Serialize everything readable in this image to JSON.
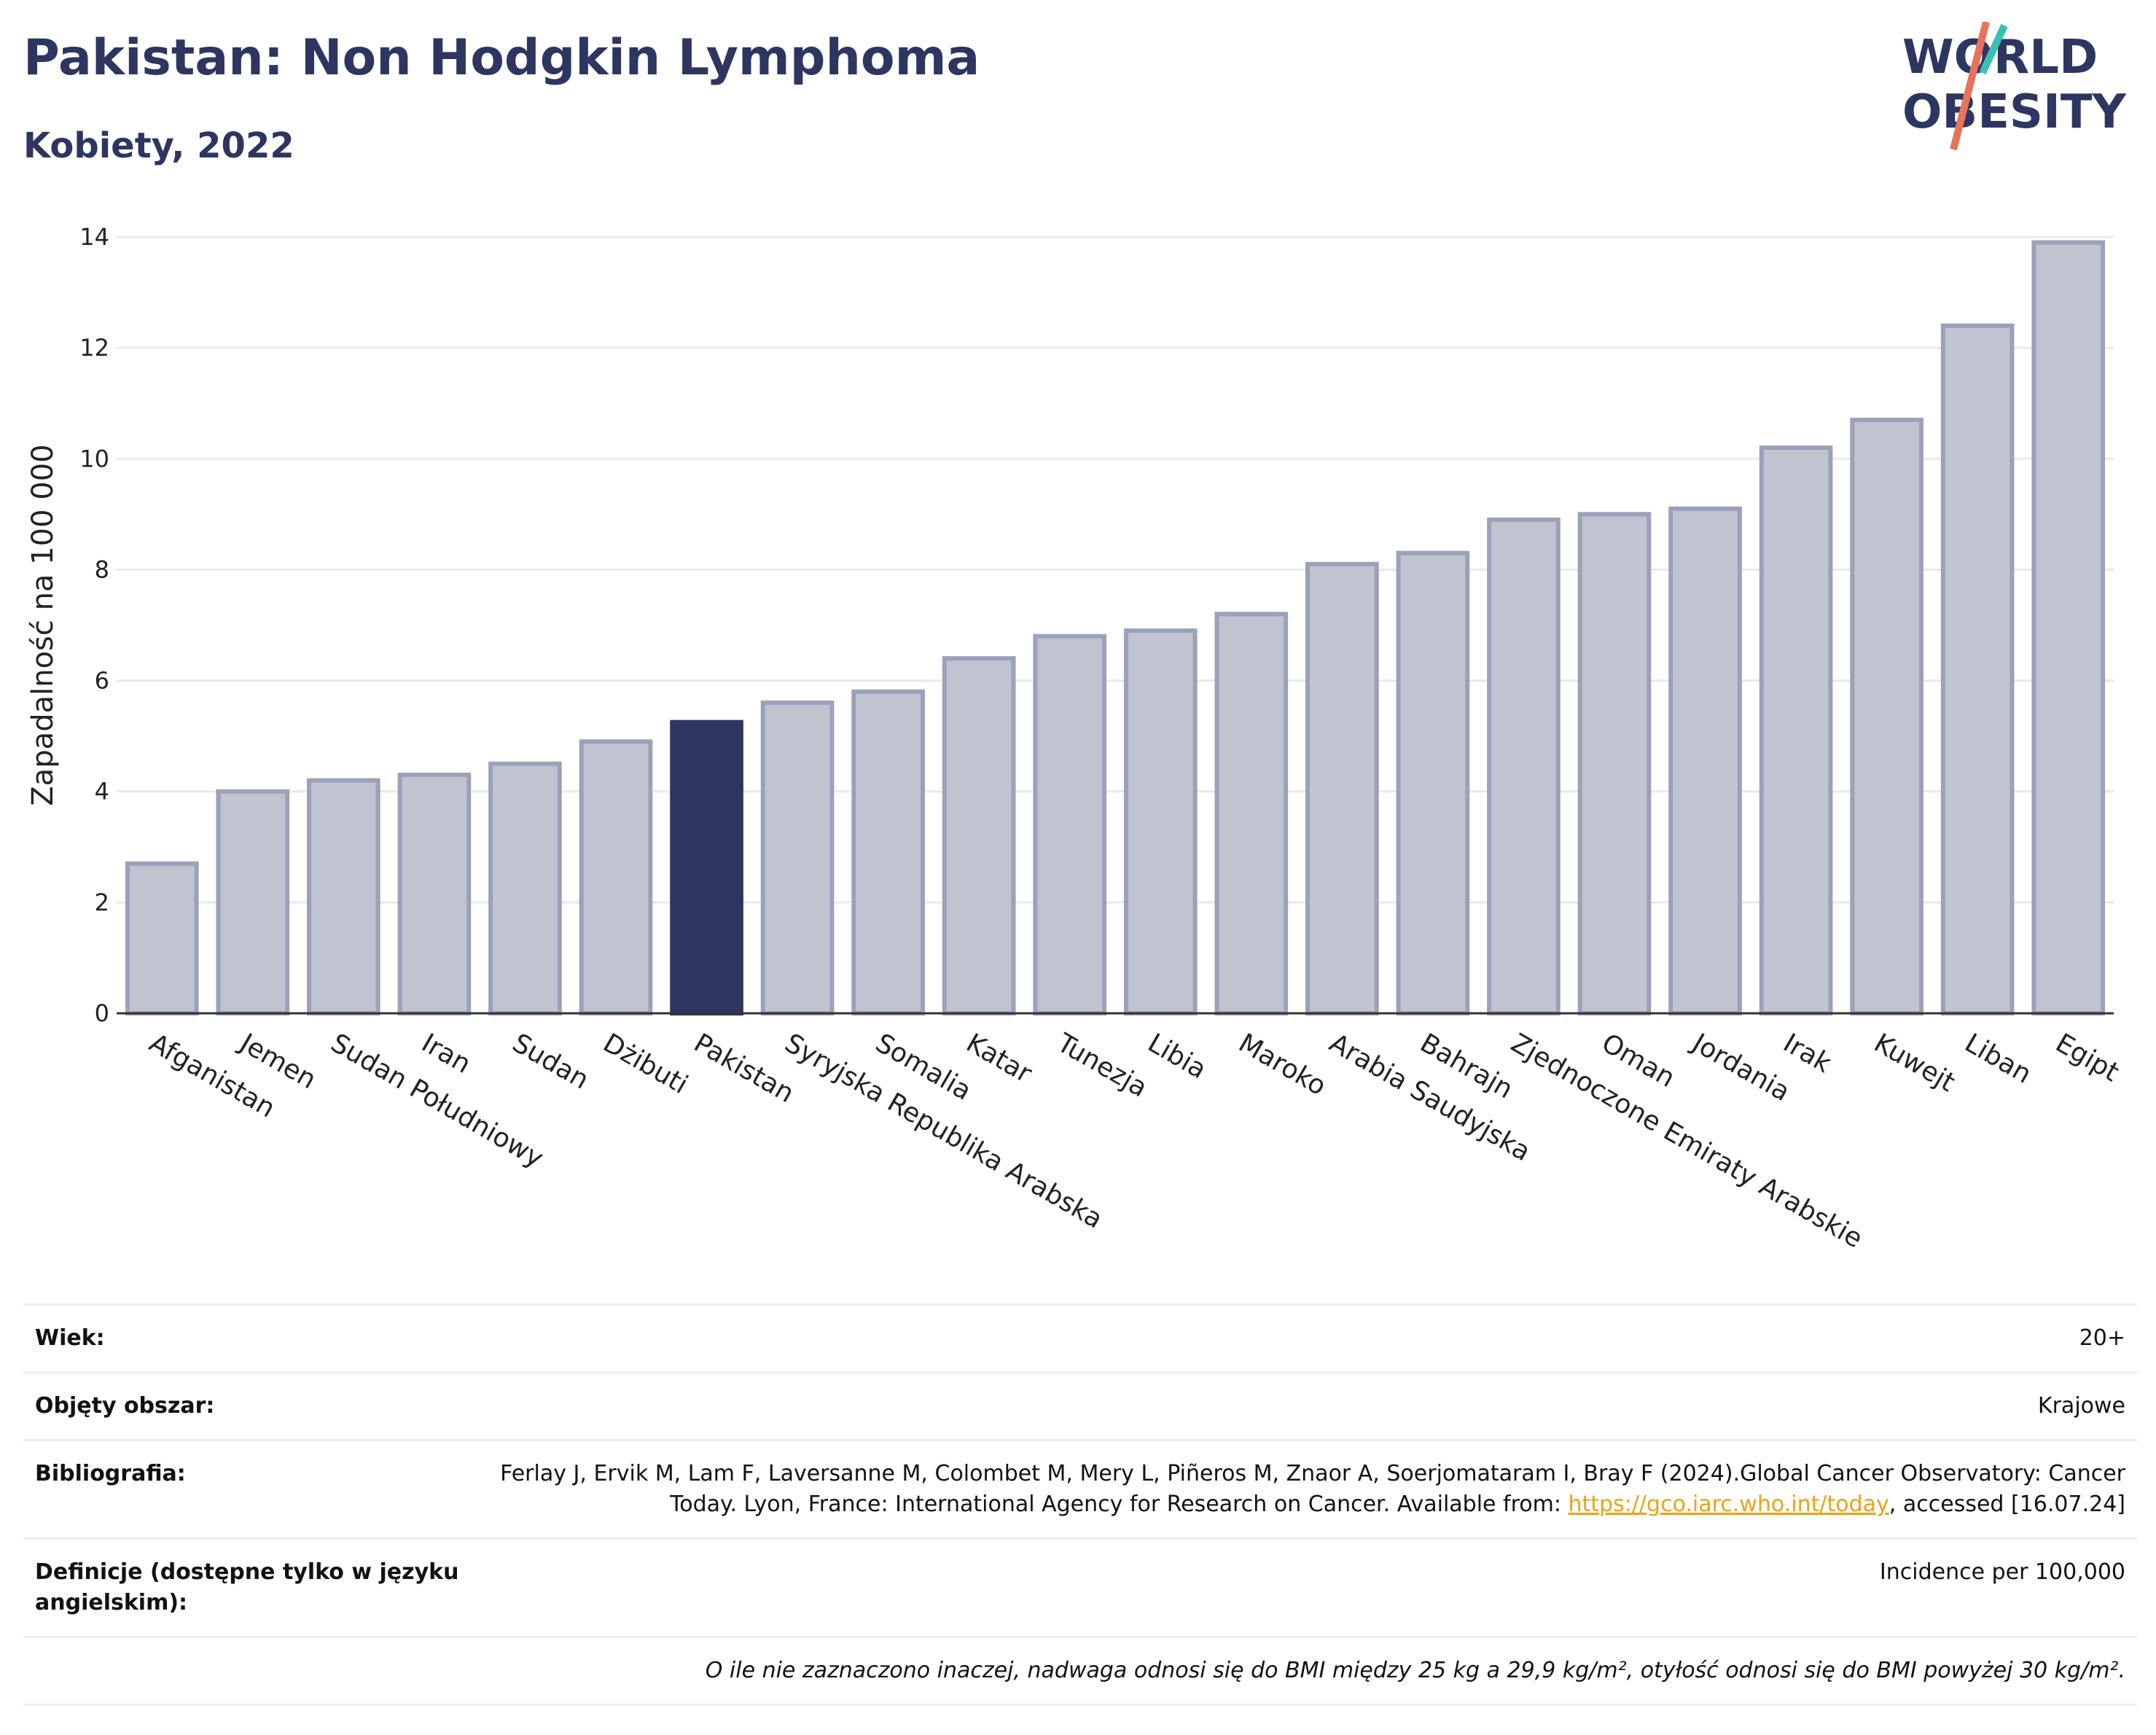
{
  "header": {
    "title": "Pakistan: Non Hodgkin Lymphoma",
    "subtitle": "Kobiety, 2022"
  },
  "logo": {
    "line1": "WORLD",
    "line2": "OBESITY"
  },
  "colors": {
    "highlight": "#2d3561",
    "bar": "#c0c3d0",
    "bar_border": "#9ba1b8",
    "grid": "#e7e9ee"
  },
  "chart_data": {
    "type": "bar",
    "title": "Pakistan: Non Hodgkin Lymphoma",
    "subtitle": "Kobiety, 2022",
    "ylabel": "Zapadalność na 100 000",
    "xlabel": "",
    "ylim": [
      0,
      14
    ],
    "yticks": [
      0,
      2,
      4,
      6,
      8,
      10,
      12,
      14
    ],
    "grid": true,
    "highlight": "Pakistan",
    "categories": [
      "Afganistan",
      "Jemen",
      "Sudan Południowy",
      "Iran",
      "Sudan",
      "Dżibuti",
      "Pakistan",
      "Syryjska Republika Arabska",
      "Somalia",
      "Katar",
      "Tunezja",
      "Libia",
      "Maroko",
      "Arabia Saudyjska",
      "Bahrajn",
      "Zjednoczone Emiraty Arabskie",
      "Oman",
      "Jordania",
      "Irak",
      "Kuwejt",
      "Liban",
      "Egipt"
    ],
    "values": [
      2.7,
      4.0,
      4.2,
      4.3,
      4.5,
      4.9,
      5.25,
      5.6,
      5.8,
      6.4,
      6.8,
      6.9,
      7.2,
      8.1,
      8.3,
      8.9,
      9.0,
      9.1,
      10.2,
      10.7,
      12.4,
      13.9
    ]
  },
  "info": {
    "age_label": "Wiek:",
    "age_value": "20+",
    "coverage_label": "Objęty obszar:",
    "coverage_value": "Krajowe",
    "bib_label": "Bibliografia:",
    "bib_text_1": "Ferlay J, Ervik M, Lam F, Laversanne M, Colombet M, Mery L, Piñeros M, Znaor A, Soerjomataram I, Bray F (2024).Global Cancer Observatory: Cancer Today. Lyon, France: International Agency for Research on Cancer. Available from: ",
    "bib_link": "https://gco.iarc.who.int/today",
    "bib_text_2": ", accessed [16.07.24]",
    "def_label": "Definicje (dostępne tylko w języku angielskim):",
    "def_value": "Incidence per 100,000",
    "note": "O ile nie zaznaczono inaczej, nadwaga odnosi się do BMI między 25 kg a 29,9 kg/m², otyłość odnosi się do BMI powyżej 30 kg/m²."
  }
}
